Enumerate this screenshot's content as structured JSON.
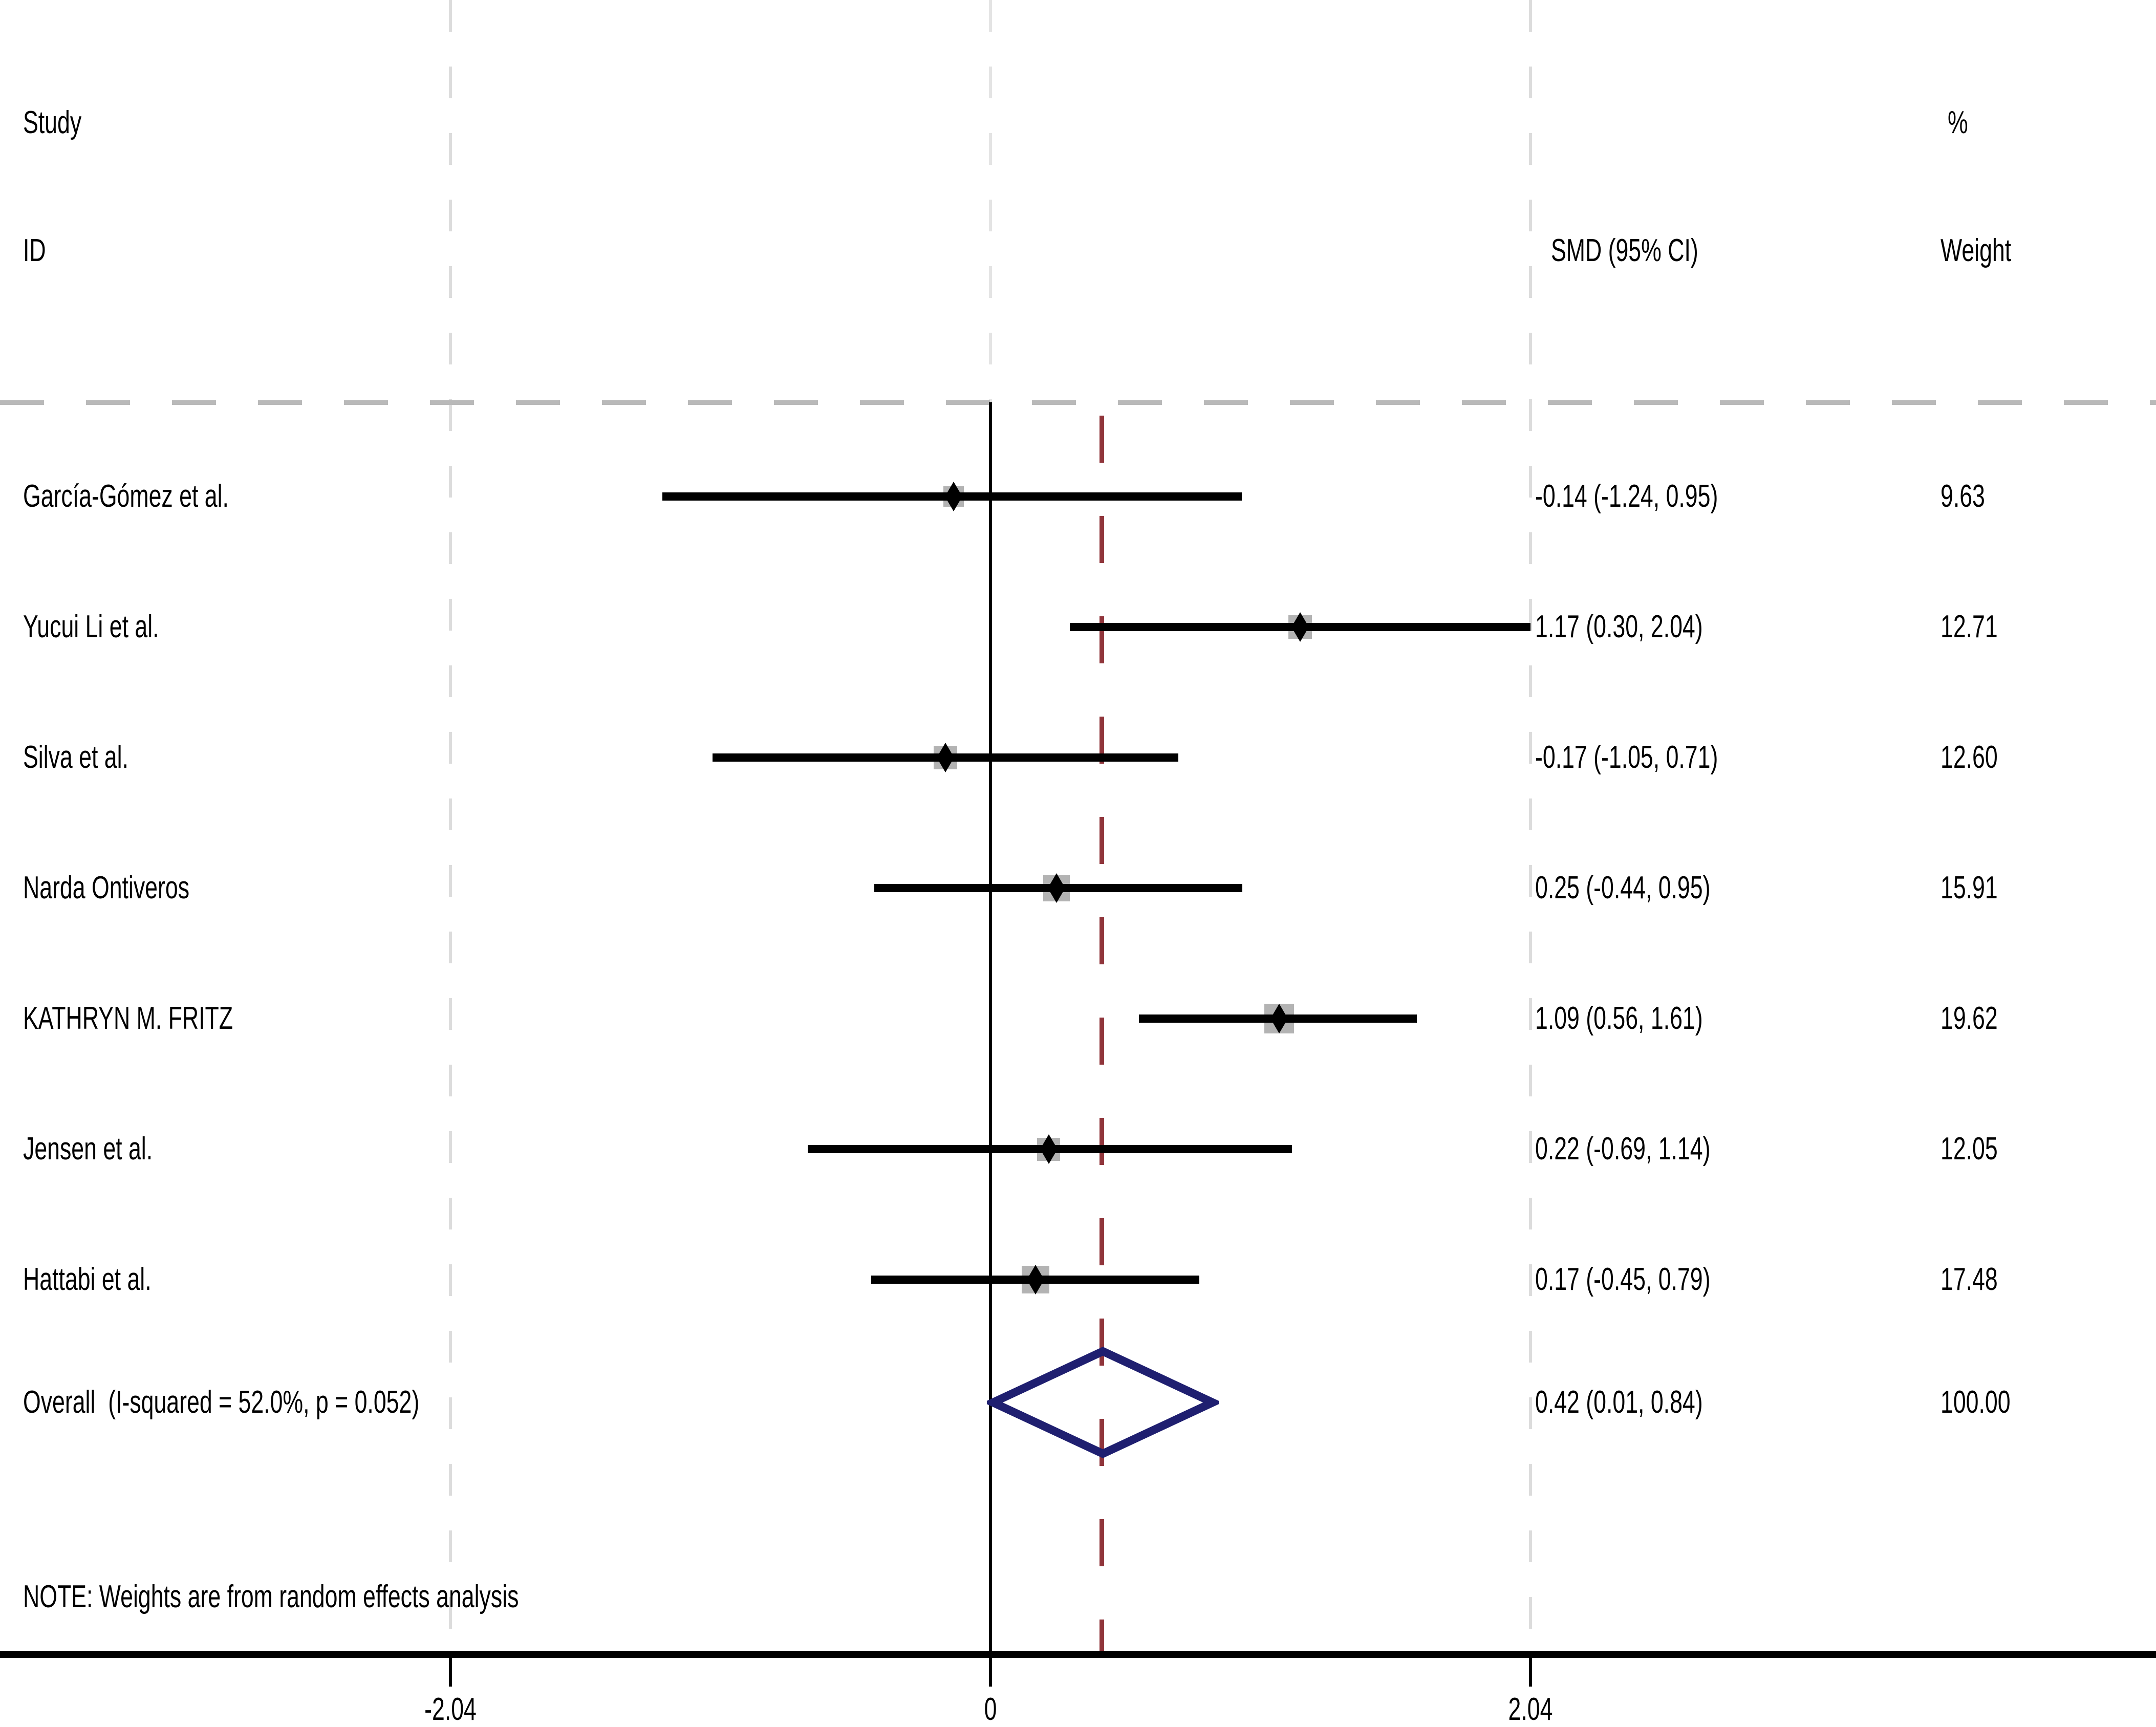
{
  "colors": {
    "background": "#ffffff",
    "ci_line": "#000000",
    "point_marker": "#000000",
    "weight_square": "#b3b3b3",
    "overall_diamond": "#1f1f70",
    "reference_line": "#90353b",
    "gridline": "#dcdcdc",
    "zero_line_upper": "#e4e4e4",
    "separator": "#b9b9b9",
    "axis": "#000000",
    "text": "#000000"
  },
  "chart_data": {
    "type": "forest",
    "title": "",
    "columns": {
      "study_line1": "Study",
      "study_line2": "ID",
      "percent": "%",
      "smd": "SMD (95% CI)",
      "weight": "Weight"
    },
    "x_axis": {
      "ticks": [
        -2.04,
        0,
        2.04
      ],
      "tick_labels": [
        "-2.04",
        "0",
        "2.04"
      ],
      "zero_line": 0,
      "reference_line_value": 0.42,
      "grid_values": [
        -2.04,
        2.04
      ]
    },
    "studies": [
      {
        "label": "García-Gómez et al.",
        "smd": -0.14,
        "ci_lo": -1.24,
        "ci_hi": 0.95,
        "smd_text": "-0.14 (-1.24, 0.95)",
        "weight": 9.63,
        "weight_text": "9.63"
      },
      {
        "label": "Yucui Li et al.",
        "smd": 1.17,
        "ci_lo": 0.3,
        "ci_hi": 2.04,
        "smd_text": "1.17 (0.30, 2.04)",
        "weight": 12.71,
        "weight_text": "12.71"
      },
      {
        "label": "Silva et al.",
        "smd": -0.17,
        "ci_lo": -1.05,
        "ci_hi": 0.71,
        "smd_text": "-0.17 (-1.05, 0.71)",
        "weight": 12.6,
        "weight_text": "12.60"
      },
      {
        "label": "Narda Ontiveros",
        "smd": 0.25,
        "ci_lo": -0.44,
        "ci_hi": 0.95,
        "smd_text": "0.25 (-0.44, 0.95)",
        "weight": 15.91,
        "weight_text": "15.91"
      },
      {
        "label": "KATHRYN M. FRITZ",
        "smd": 1.09,
        "ci_lo": 0.56,
        "ci_hi": 1.61,
        "smd_text": "1.09 (0.56, 1.61)",
        "weight": 19.62,
        "weight_text": "19.62"
      },
      {
        "label": "Jensen et al.",
        "smd": 0.22,
        "ci_lo": -0.69,
        "ci_hi": 1.14,
        "smd_text": "0.22 (-0.69, 1.14)",
        "weight": 12.05,
        "weight_text": "12.05"
      },
      {
        "label": "Hattabi et al.",
        "smd": 0.17,
        "ci_lo": -0.45,
        "ci_hi": 0.79,
        "smd_text": "0.17 (-0.45, 0.79)",
        "weight": 17.48,
        "weight_text": "17.48"
      }
    ],
    "overall": {
      "label": "Overall  (I-squared = 52.0%, p = 0.052)",
      "smd": 0.42,
      "ci_lo": 0.01,
      "ci_hi": 0.84,
      "smd_text": "0.42 (0.01, 0.84)",
      "weight_text": "100.00"
    },
    "note": "NOTE: Weights are from random effects analysis"
  }
}
